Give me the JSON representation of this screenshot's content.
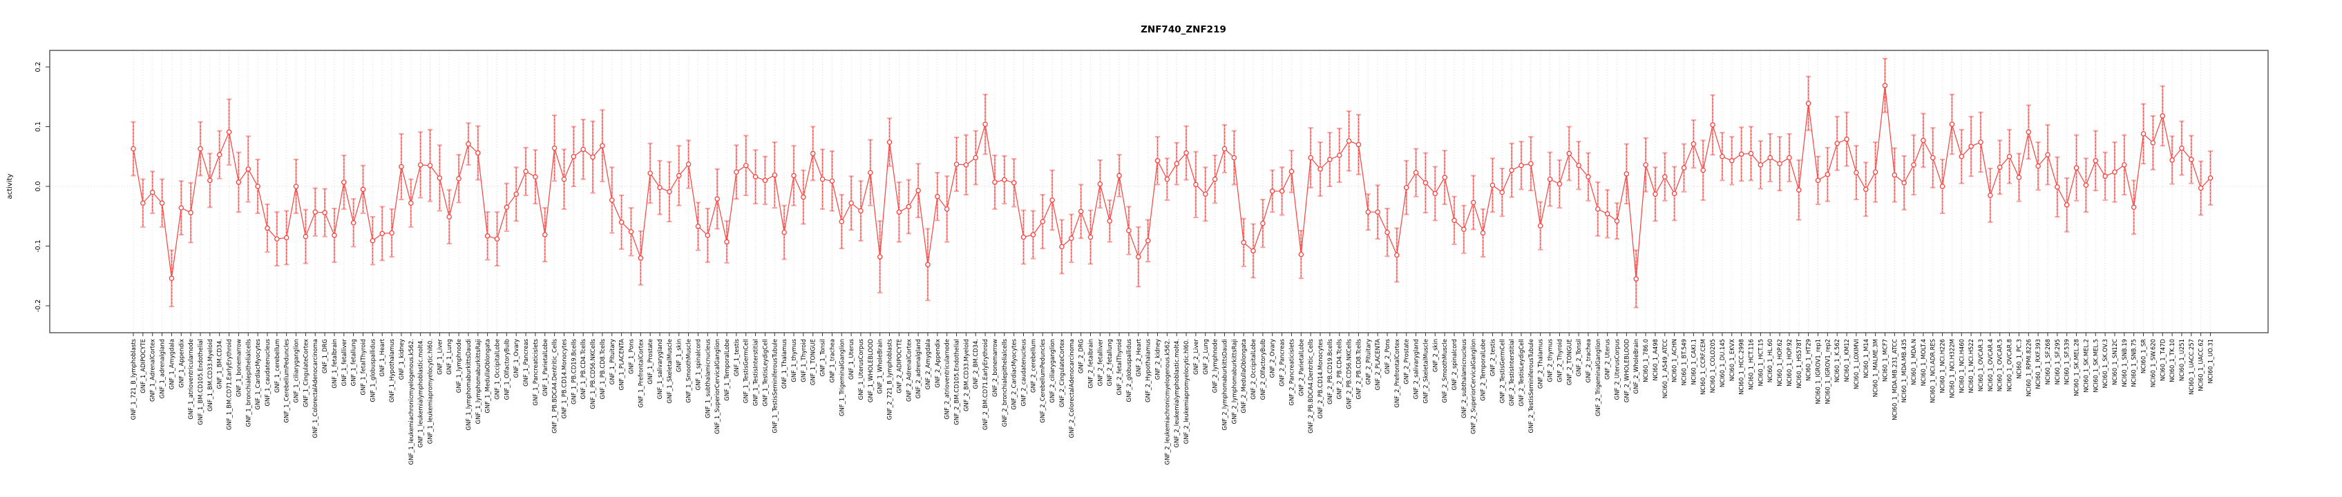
{
  "title": "ZNF740_ZNF219",
  "chart_data": {
    "type": "line",
    "subtype": "point-with-error-bars",
    "title": "ZNF740_ZNF219",
    "xlabel": "",
    "ylabel": "activity",
    "ylim": [
      -0.225,
      0.23
    ],
    "yticks": [
      0.2,
      0.1,
      0.0,
      -0.1,
      -0.2
    ],
    "grid": "dotted vertical line at every category; dotted horizontal line at y=0",
    "legend_position": "none",
    "colors": {
      "point_line": "#f8413c",
      "error_bar": "#f99d9d",
      "grid": "#d9d9d9",
      "axis_box": "#5a5a5a",
      "tick": "#333333",
      "background": "#ffffff"
    },
    "categories": [
      "GNF_1_721_B_lymphoblasts",
      "GNF_1_ADIPOCYTE",
      "GNF_1_AdrenalCortex",
      "GNF_1_adrenalgland",
      "GNF_1_Amygdala",
      "GNF_1_Appendix",
      "GNF_1_atrioventricularnode",
      "GNF_1_BM.CD105.Endothelial",
      "GNF_1_BM.CD33.Myeloid",
      "GNF_1_BM.CD34.",
      "GNF_1_BM.CD71.EarlyErythroid",
      "GNF_1_bonemarrow",
      "GNF_1_bronchialepithelialcells",
      "GNF_1_CardiacMyocytes",
      "GNF_1_caudatenucleus",
      "GNF_1_cerebellum",
      "GNF_1_CerebellumPeduncles",
      "GNF_1_ciliaryganglion",
      "GNF_1_CingulateCortex",
      "GNF_1_ColorectalAdenocarcinoma",
      "GNF_1_DRG",
      "GNF_1_fetalbrain",
      "GNF_1_fetalliver",
      "GNF_1_fetallung",
      "GNF_1_fetalThyroid",
      "GNF_1_globuspallidus",
      "GNF_1_Heart",
      "GNF_1_Hypothalamus",
      "GNF_1_kidney",
      "GNF_1_leukemiachronicmyelogenous.k562.",
      "GNF_1_leukemialymphoblastic.molt4.",
      "GNF_1_leukemiapromyelocytic.hl60.",
      "GNF_1_Liver",
      "GNF_1_Lung",
      "GNF_1_lymphnode",
      "GNF_1_lymphomaburkittsDaudi",
      "GNF_1_lymphomaburkittsRaji",
      "GNF_1_MedullaOblongata",
      "GNF_1_OccipitalLobe",
      "GNF_1_OlfactoryBulb",
      "GNF_1_Ovary",
      "GNF_1_Pancreas",
      "GNF_1_Pancreaticislets",
      "GNF_1_ParietalLobe",
      "GNF_1_PB.BDCA4.Dentritic_Cells",
      "GNF_1_PB.CD14.Monocytes",
      "GNF_1_PB.CD19.Bcells",
      "GNF_1_PB.CD4.Tcells",
      "GNF_1_PB.CD56.NKCells",
      "GNF_1_PB.CD8.Tcells",
      "GNF_1_Pituitary",
      "GNF_1_PLACENTA",
      "GNF_1_Pons",
      "GNF_1_PrefrontalCortex",
      "GNF_1_Prostate",
      "GNF_1_salivarygland",
      "GNF_1_SkeletalMuscle",
      "GNF_1_skin",
      "GNF_1_SmoothMuscle",
      "GNF_1_spinalcord",
      "GNF_1_subthalamicnucleus",
      "GNF_1_SuperiorCervicalGanglion",
      "GNF_1_TemporalLobe",
      "GNF_1_testis",
      "GNF_1_TestisGermCell",
      "GNF_1_TestisInterstitial",
      "GNF_1_TestisLeydigCell",
      "GNF_1_TestisSeminiferousTubule",
      "GNF_1_Thalamus",
      "GNF_1_thymus",
      "GNF_1_Thyroid",
      "GNF_1_TONGUE",
      "GNF_1_Tonsil",
      "GNF_1_trachea",
      "GNF_1_TrigeminalGanglion",
      "GNF_1_Uterus",
      "GNF_1_UterusCorpus",
      "GNF_1_WHOLEBLOOD",
      "GNF_1_WholeBrain",
      "GNF_2_721_B_lymphoblasts",
      "GNF_2_ADIPOCYTE",
      "GNF_2_AdrenalCortex",
      "GNF_2_adrenalgland",
      "GNF_2_Amygdala",
      "GNF_2_Appendix",
      "GNF_2_atrioventricularnode",
      "GNF_2_BM.CD105.Endothelial",
      "GNF_2_BM.CD33.Myeloid",
      "GNF_2_BM.CD34.",
      "GNF_2_BM.CD71.EarlyErythroid",
      "GNF_2_bonemarrow",
      "GNF_2_bronchialepithelialcells",
      "GNF_2_CardiacMyocytes",
      "GNF_2_caudatenucleus",
      "GNF_2_cerebellum",
      "GNF_2_CerebellumPeduncles",
      "GNF_2_ciliaryganglion",
      "GNF_2_CingulateCortex",
      "GNF_2_ColorectalAdenocarcinoma",
      "GNF_2_DRG",
      "GNF_2_fetalbrain",
      "GNF_2_fetalliver",
      "GNF_2_fetallung",
      "GNF_2_fetalThyroid",
      "GNF_2_globuspallidus",
      "GNF_2_Heart",
      "GNF_2_Hypothalamus",
      "GNF_2_kidney",
      "GNF_2_leukemiachronicmyelogenous.k562.",
      "GNF_2_leukemialymphoblastic.molt4.",
      "GNF_2_leukemiapromyelocytic.hl60.",
      "GNF_2_Liver",
      "GNF_2_Lung",
      "GNF_2_lymphnode",
      "GNF_2_lymphomaburkittsDaudi",
      "GNF_2_lymphomaburkittsRaji",
      "GNF_2_MedullaOblongata",
      "GNF_2_OccipitalLobe",
      "GNF_2_OlfactoryBulb",
      "GNF_2_Ovary",
      "GNF_2_Pancreas",
      "GNF_2_Pancreaticislets",
      "GNF_2_ParietalLobe",
      "GNF_2_PB.BDCA4.Dentritic_Cells",
      "GNF_2_PB.CD14.Monocytes",
      "GNF_2_PB.CD19.Bcells",
      "GNF_2_PB.CD4.Tcells",
      "GNF_2_PB.CD56.NKCells",
      "GNF_2_PB.CD8.Tcells",
      "GNF_2_Pituitary",
      "GNF_2_PLACENTA",
      "GNF_2_Pons",
      "GNF_2_PrefrontalCortex",
      "GNF_2_Prostate",
      "GNF_2_salivarygland",
      "GNF_2_SkeletalMuscle",
      "GNF_2_skin",
      "GNF_2_SmoothMuscle",
      "GNF_2_spinalcord",
      "GNF_2_subthalamicnucleus",
      "GNF_2_SuperiorCervicalGanglion",
      "GNF_2_TemporalLobe",
      "GNF_2_testis",
      "GNF_2_TestisGermCell",
      "GNF_2_TestisInterstitial",
      "GNF_2_TestisLeydigCell",
      "GNF_2_TestisSeminiferousTubule",
      "GNF_2_Thalamus",
      "GNF_2_thymus",
      "GNF_2_Thyroid",
      "GNF_2_TONGUE",
      "GNF_2_Tonsil",
      "GNF_2_trachea",
      "GNF_2_TrigeminalGanglion",
      "GNF_2_Uterus",
      "GNF_2_UterusCorpus",
      "GNF_2_WHOLEBLOOD",
      "GNF_2_WholeBrain",
      "NCI60_1_786.0",
      "NCI60_1_A498",
      "NCI60_1_A549_ATCC",
      "NCI60_1_ACHN",
      "NCI60_1_BT.549",
      "NCI60_1_CAKI.1",
      "NCI60_1_CCRF.CEM",
      "NCI60_1_COLO205",
      "NCI60_1_DU.145",
      "NCI60_1_EKVX",
      "NCI60_1_HCC.2998",
      "NCI60_1_HCT.116",
      "NCI60_1_HCT.15",
      "NCI60_1_HL.60",
      "NCI60_1_HOP.62",
      "NCI60_1_HOP.92",
      "NCI60_1_HS578T",
      "NCI60_1_HT29",
      "NCI60_1_IGROV1_rep1",
      "NCI60_1_IGROV1_rep2",
      "NCI60_1_K.562",
      "NCI60_1_KM12",
      "NCI60_1_LOXIMVI",
      "NCI60_1_M14",
      "NCI60_1_MALME.3M",
      "NCI60_1_MCF7",
      "NCI60_1_MDA.MB.231_ATCC",
      "NCI60_1_MDA.MB.435",
      "NCI60_1_MDA.N",
      "NCI60_1_MOLT.4",
      "NCI60_1_NCI.ADR.RES",
      "NCI60_1_NCI.H226",
      "NCI60_1_NCI.H322M",
      "NCI60_1_NCI.H460",
      "NCI60_1_NCI.H522",
      "NCI60_1_OVCAR.3",
      "NCI60_1_OVCAR.4",
      "NCI60_1_OVCAR.5",
      "NCI60_1_OVCAR.8",
      "NCI60_1_PC.3",
      "NCI60_1_RPMI.8226",
      "NCI60_1_RXF.393",
      "NCI60_1_SF.268",
      "NCI60_1_SF.295",
      "NCI60_1_SF.539",
      "NCI60_1_SK.MEL.28",
      "NCI60_1_SK.MEL.2",
      "NCI60_1_SK.MEL.5",
      "NCI60_1_SK.OV.3",
      "NCI60_1_SN12C",
      "NCI60_1_SNB.19",
      "NCI60_1_SNB.75",
      "NCI60_1_SR",
      "NCI60_1_SW.620",
      "NCI60_1_T47D",
      "NCI60_1_TK.10",
      "NCI60_1_U251",
      "NCI60_1_UACC.257",
      "NCI60_1_UACC.62",
      "NCI60_1_UO.31"
    ],
    "values": [
      0.063,
      -0.028,
      -0.01,
      -0.028,
      -0.154,
      -0.036,
      -0.044,
      0.063,
      0.01,
      0.053,
      0.091,
      0.007,
      0.029,
      0.0,
      -0.07,
      -0.088,
      -0.086,
      0.0,
      -0.084,
      -0.043,
      -0.044,
      -0.082,
      0.007,
      -0.061,
      -0.005,
      -0.091,
      -0.079,
      -0.078,
      0.033,
      -0.028,
      0.036,
      0.035,
      0.014,
      -0.051,
      0.013,
      0.071,
      0.056,
      -0.083,
      -0.088,
      -0.035,
      -0.013,
      0.025,
      0.016,
      -0.081,
      0.064,
      0.012,
      0.05,
      0.062,
      0.049,
      0.068,
      -0.023,
      -0.06,
      -0.076,
      -0.12,
      0.022,
      -0.002,
      -0.009,
      0.018,
      0.037,
      -0.067,
      -0.082,
      -0.021,
      -0.093,
      0.024,
      0.035,
      0.016,
      0.01,
      0.019,
      -0.077,
      0.018,
      -0.018,
      0.055,
      0.012,
      0.009,
      -0.059,
      -0.028,
      -0.041,
      0.023,
      -0.118,
      0.074,
      -0.043,
      -0.034,
      -0.007,
      -0.131,
      -0.017,
      -0.038,
      0.037,
      0.036,
      0.048,
      0.104,
      0.007,
      0.011,
      0.006,
      -0.085,
      -0.081,
      -0.059,
      -0.023,
      -0.101,
      -0.087,
      -0.042,
      -0.085,
      0.004,
      -0.058,
      0.018,
      -0.074,
      -0.118,
      -0.091,
      0.043,
      0.012,
      0.038,
      0.056,
      0.003,
      -0.013,
      0.012,
      0.063,
      0.048,
      -0.094,
      -0.108,
      -0.062,
      -0.008,
      -0.008,
      0.025,
      -0.114,
      0.048,
      0.029,
      0.045,
      0.052,
      0.076,
      0.07,
      -0.043,
      -0.043,
      -0.077,
      -0.115,
      -0.002,
      0.023,
      0.006,
      -0.012,
      0.015,
      -0.057,
      -0.072,
      -0.027,
      -0.078,
      0.002,
      -0.01,
      0.027,
      0.035,
      0.038,
      -0.066,
      0.012,
      0.004,
      0.055,
      0.035,
      0.016,
      -0.038,
      -0.046,
      -0.058,
      0.021,
      -0.155,
      0.036,
      -0.013,
      0.016,
      -0.012,
      0.031,
      0.071,
      0.027,
      0.103,
      0.05,
      0.043,
      0.054,
      0.055,
      0.036,
      0.048,
      0.038,
      0.048,
      -0.006,
      0.139,
      0.01,
      0.02,
      0.072,
      0.079,
      0.023,
      -0.005,
      0.024,
      0.169,
      0.019,
      0.006,
      0.036,
      0.077,
      0.048,
      0.0,
      0.104,
      0.05,
      0.067,
      0.074,
      -0.015,
      0.032,
      0.05,
      0.015,
      0.091,
      0.034,
      0.053,
      -0.001,
      -0.031,
      0.031,
      0.002,
      0.043,
      0.017,
      0.024,
      0.036,
      -0.035,
      0.088,
      0.073,
      0.118,
      0.044,
      0.064,
      0.045,
      -0.003,
      0.014
    ],
    "errors": [
      0.045,
      0.04,
      0.035,
      0.04,
      0.047,
      0.045,
      0.05,
      0.045,
      0.045,
      0.04,
      0.055,
      0.05,
      0.055,
      0.045,
      0.04,
      0.045,
      0.045,
      0.045,
      0.045,
      0.04,
      0.04,
      0.045,
      0.045,
      0.04,
      0.04,
      0.04,
      0.045,
      0.04,
      0.055,
      0.04,
      0.055,
      0.06,
      0.055,
      0.045,
      0.04,
      0.035,
      0.045,
      0.04,
      0.045,
      0.04,
      0.045,
      0.04,
      0.045,
      0.045,
      0.055,
      0.05,
      0.05,
      0.05,
      0.06,
      0.06,
      0.055,
      0.045,
      0.04,
      0.045,
      0.05,
      0.045,
      0.05,
      0.05,
      0.04,
      0.04,
      0.045,
      0.05,
      0.035,
      0.045,
      0.05,
      0.045,
      0.04,
      0.055,
      0.045,
      0.05,
      0.045,
      0.045,
      0.05,
      0.05,
      0.045,
      0.045,
      0.05,
      0.055,
      0.06,
      0.04,
      0.05,
      0.045,
      0.045,
      0.06,
      0.04,
      0.055,
      0.045,
      0.05,
      0.045,
      0.05,
      0.045,
      0.04,
      0.04,
      0.045,
      0.04,
      0.045,
      0.05,
      0.045,
      0.04,
      0.045,
      0.045,
      0.04,
      0.035,
      0.035,
      0.04,
      0.05,
      0.035,
      0.04,
      0.035,
      0.035,
      0.045,
      0.055,
      0.045,
      0.04,
      0.04,
      0.045,
      0.04,
      0.045,
      0.04,
      0.035,
      0.04,
      0.035,
      0.04,
      0.05,
      0.045,
      0.045,
      0.045,
      0.05,
      0.05,
      0.03,
      0.045,
      0.04,
      0.045,
      0.045,
      0.04,
      0.05,
      0.045,
      0.045,
      0.04,
      0.04,
      0.045,
      0.04,
      0.045,
      0.04,
      0.045,
      0.04,
      0.045,
      0.04,
      0.045,
      0.04,
      0.045,
      0.04,
      0.04,
      0.045,
      0.04,
      0.03,
      0.05,
      0.048,
      0.045,
      0.045,
      0.04,
      0.045,
      0.04,
      0.04,
      0.05,
      0.05,
      0.04,
      0.04,
      0.045,
      0.045,
      0.04,
      0.04,
      0.045,
      0.04,
      0.05,
      0.045,
      0.04,
      0.045,
      0.045,
      0.045,
      0.045,
      0.045,
      0.05,
      0.045,
      0.045,
      0.045,
      0.05,
      0.045,
      0.05,
      0.045,
      0.05,
      0.045,
      0.05,
      0.05,
      0.045,
      0.045,
      0.045,
      0.04,
      0.045,
      0.04,
      0.05,
      0.05,
      0.045,
      0.055,
      0.045,
      0.05,
      0.04,
      0.05,
      0.05,
      0.045,
      0.05,
      0.045,
      0.05,
      0.04,
      0.045,
      0.04,
      0.045,
      0.045
    ]
  },
  "layout_labels": {
    "ytick_format": [
      "0.2",
      "0.1",
      "0.0",
      "-0.1",
      "-0.2"
    ]
  }
}
